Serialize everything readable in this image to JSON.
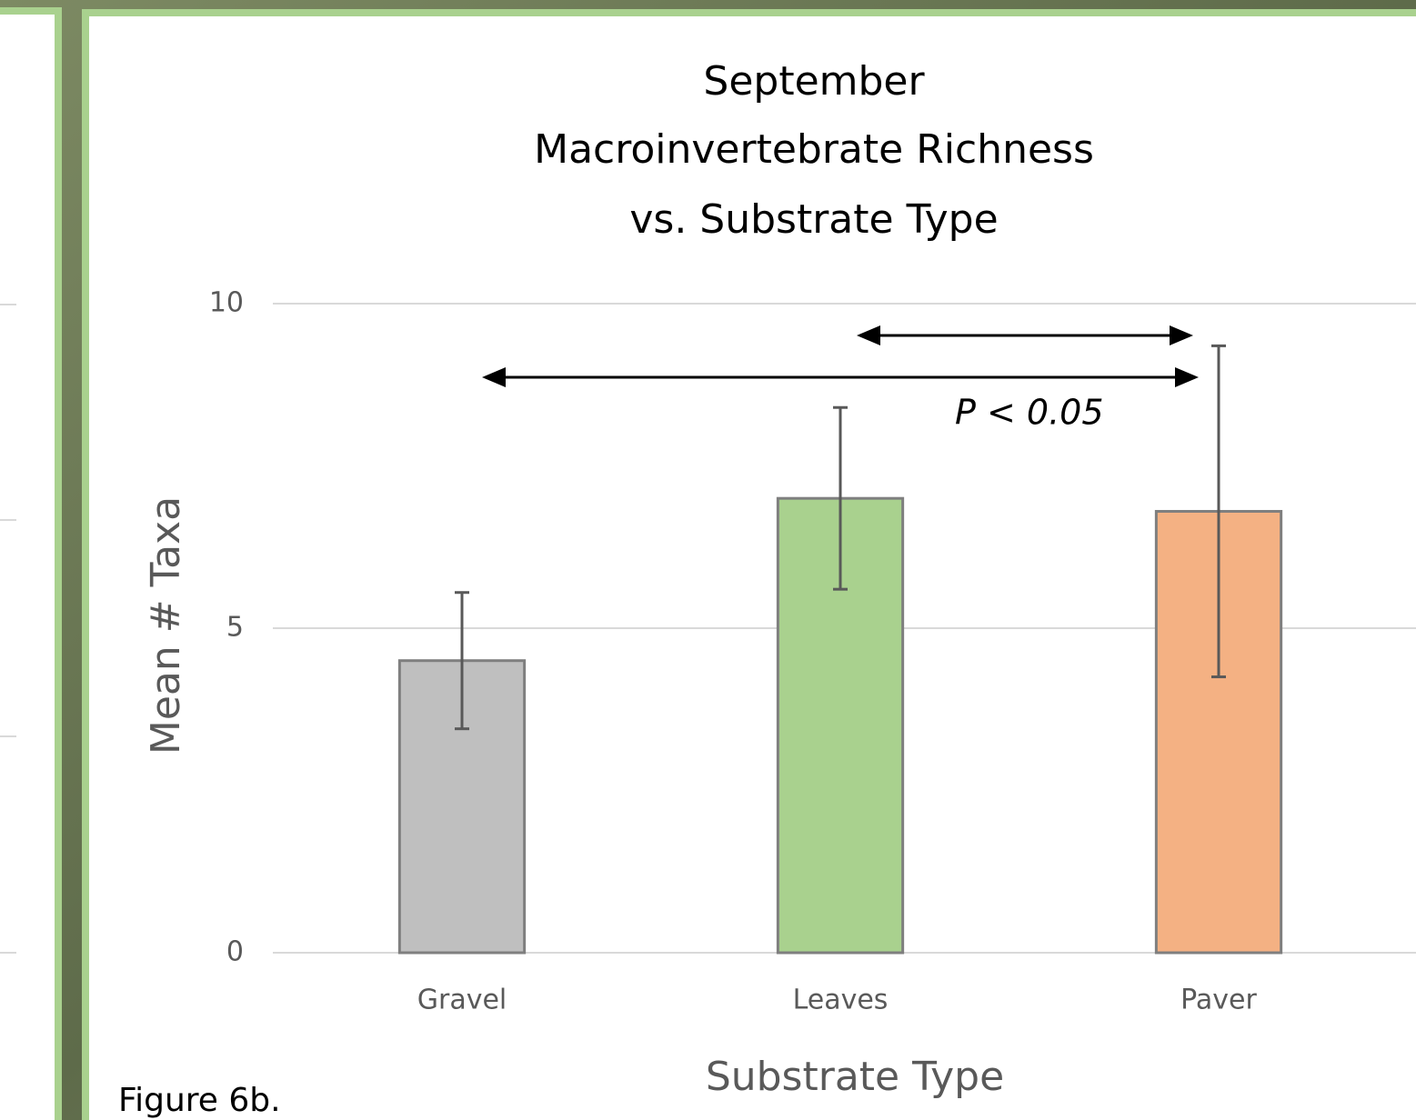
{
  "chart_data": {
    "type": "bar",
    "title": [
      "September",
      "Macroinvertebrate Richness",
      "vs. Substrate Type"
    ],
    "categories": [
      "Gravel",
      "Leaves",
      "Paver"
    ],
    "values": [
      4.5,
      7.0,
      6.8
    ],
    "errors": [
      1.05,
      1.4,
      2.55
    ],
    "colors": [
      "#bfbfbf",
      "#a9d18e",
      "#f4b183"
    ],
    "x_label": "Substrate Type",
    "y_label": "Mean # Taxa",
    "ylim": [
      0,
      10
    ],
    "yticks": [
      0,
      5,
      10
    ],
    "grid": true,
    "annotation": "P < 0.05",
    "caption": "Figure 6b."
  }
}
